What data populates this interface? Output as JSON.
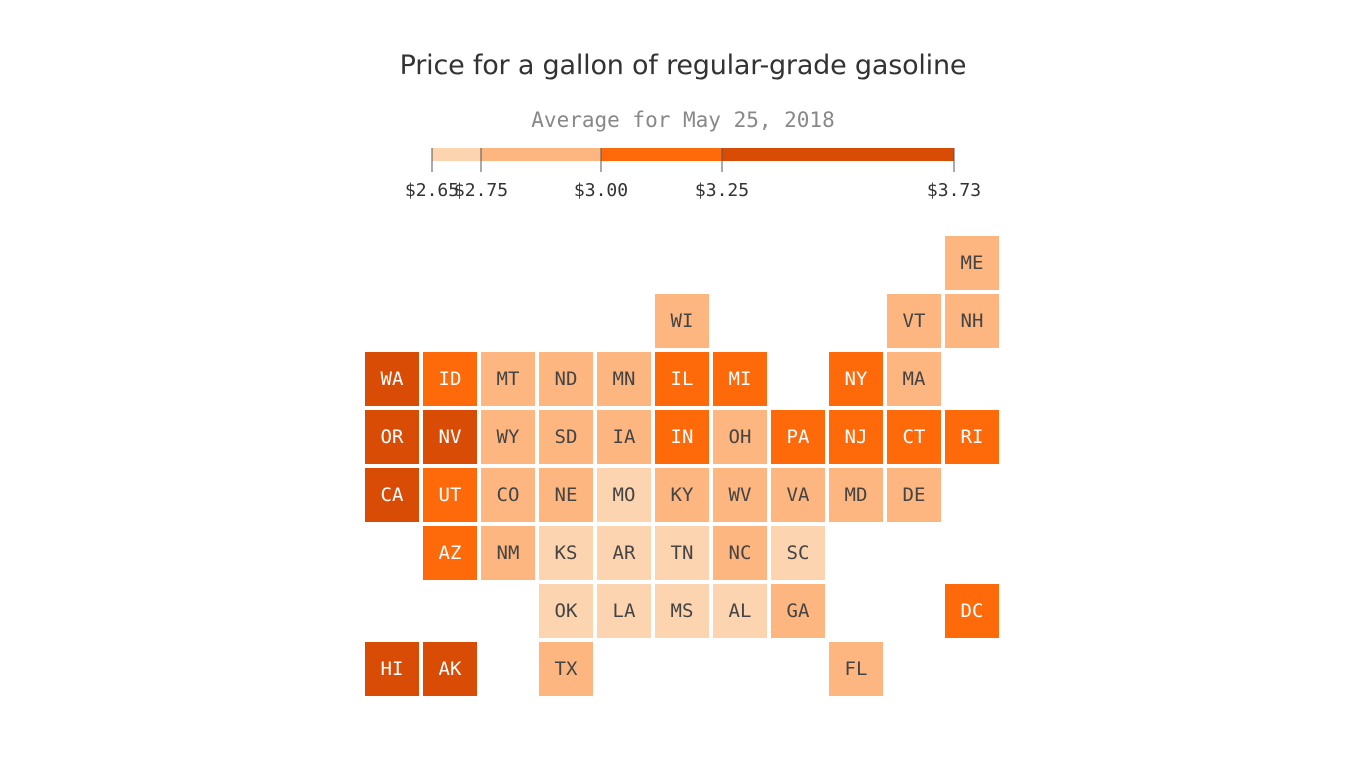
{
  "chart_data": {
    "type": "heatmap",
    "title": "Price for a gallon of regular-grade gasoline",
    "subtitle": "Average for May 25, 2018",
    "legend": {
      "ticks": [
        2.65,
        2.75,
        3.0,
        3.25,
        3.73
      ],
      "tick_labels": [
        "$2.65",
        "$2.75",
        "$3.00",
        "$3.25",
        "$3.73"
      ],
      "bins": [
        {
          "min": 2.65,
          "max": 2.75,
          "color": "#fdd4b0"
        },
        {
          "min": 2.75,
          "max": 3.0,
          "color": "#fdb67f"
        },
        {
          "min": 3.0,
          "max": 3.25,
          "color": "#fe6a0a"
        },
        {
          "min": 3.25,
          "max": 3.73,
          "color": "#d84c05"
        }
      ]
    },
    "states": [
      {
        "code": "ME",
        "row": 0,
        "col": 10,
        "bin": 1
      },
      {
        "code": "WI",
        "row": 1,
        "col": 5,
        "bin": 1
      },
      {
        "code": "VT",
        "row": 1,
        "col": 9,
        "bin": 1
      },
      {
        "code": "NH",
        "row": 1,
        "col": 10,
        "bin": 1
      },
      {
        "code": "WA",
        "row": 2,
        "col": 0,
        "bin": 3
      },
      {
        "code": "ID",
        "row": 2,
        "col": 1,
        "bin": 2
      },
      {
        "code": "MT",
        "row": 2,
        "col": 2,
        "bin": 1
      },
      {
        "code": "ND",
        "row": 2,
        "col": 3,
        "bin": 1
      },
      {
        "code": "MN",
        "row": 2,
        "col": 4,
        "bin": 1
      },
      {
        "code": "IL",
        "row": 2,
        "col": 5,
        "bin": 2
      },
      {
        "code": "MI",
        "row": 2,
        "col": 6,
        "bin": 2
      },
      {
        "code": "NY",
        "row": 2,
        "col": 8,
        "bin": 2
      },
      {
        "code": "MA",
        "row": 2,
        "col": 9,
        "bin": 1
      },
      {
        "code": "OR",
        "row": 3,
        "col": 0,
        "bin": 3
      },
      {
        "code": "NV",
        "row": 3,
        "col": 1,
        "bin": 3
      },
      {
        "code": "WY",
        "row": 3,
        "col": 2,
        "bin": 1
      },
      {
        "code": "SD",
        "row": 3,
        "col": 3,
        "bin": 1
      },
      {
        "code": "IA",
        "row": 3,
        "col": 4,
        "bin": 1
      },
      {
        "code": "IN",
        "row": 3,
        "col": 5,
        "bin": 2
      },
      {
        "code": "OH",
        "row": 3,
        "col": 6,
        "bin": 1
      },
      {
        "code": "PA",
        "row": 3,
        "col": 7,
        "bin": 2
      },
      {
        "code": "NJ",
        "row": 3,
        "col": 8,
        "bin": 2
      },
      {
        "code": "CT",
        "row": 3,
        "col": 9,
        "bin": 2
      },
      {
        "code": "RI",
        "row": 3,
        "col": 10,
        "bin": 2
      },
      {
        "code": "CA",
        "row": 4,
        "col": 0,
        "bin": 3
      },
      {
        "code": "UT",
        "row": 4,
        "col": 1,
        "bin": 2
      },
      {
        "code": "CO",
        "row": 4,
        "col": 2,
        "bin": 1
      },
      {
        "code": "NE",
        "row": 4,
        "col": 3,
        "bin": 1
      },
      {
        "code": "MO",
        "row": 4,
        "col": 4,
        "bin": 0
      },
      {
        "code": "KY",
        "row": 4,
        "col": 5,
        "bin": 1
      },
      {
        "code": "WV",
        "row": 4,
        "col": 6,
        "bin": 1
      },
      {
        "code": "VA",
        "row": 4,
        "col": 7,
        "bin": 1
      },
      {
        "code": "MD",
        "row": 4,
        "col": 8,
        "bin": 1
      },
      {
        "code": "DE",
        "row": 4,
        "col": 9,
        "bin": 1
      },
      {
        "code": "AZ",
        "row": 5,
        "col": 1,
        "bin": 2
      },
      {
        "code": "NM",
        "row": 5,
        "col": 2,
        "bin": 1
      },
      {
        "code": "KS",
        "row": 5,
        "col": 3,
        "bin": 0
      },
      {
        "code": "AR",
        "row": 5,
        "col": 4,
        "bin": 0
      },
      {
        "code": "TN",
        "row": 5,
        "col": 5,
        "bin": 0
      },
      {
        "code": "NC",
        "row": 5,
        "col": 6,
        "bin": 1
      },
      {
        "code": "SC",
        "row": 5,
        "col": 7,
        "bin": 0
      },
      {
        "code": "OK",
        "row": 6,
        "col": 3,
        "bin": 0
      },
      {
        "code": "LA",
        "row": 6,
        "col": 4,
        "bin": 0
      },
      {
        "code": "MS",
        "row": 6,
        "col": 5,
        "bin": 0
      },
      {
        "code": "AL",
        "row": 6,
        "col": 6,
        "bin": 0
      },
      {
        "code": "GA",
        "row": 6,
        "col": 7,
        "bin": 1
      },
      {
        "code": "DC",
        "row": 6,
        "col": 10,
        "bin": 2
      },
      {
        "code": "HI",
        "row": 7,
        "col": 0,
        "bin": 3
      },
      {
        "code": "AK",
        "row": 7,
        "col": 1,
        "bin": 3
      },
      {
        "code": "TX",
        "row": 7,
        "col": 3,
        "bin": 1
      },
      {
        "code": "FL",
        "row": 7,
        "col": 8,
        "bin": 1
      }
    ]
  },
  "colors": {
    "text_dark": "#444444",
    "text_light": "#ffffff"
  }
}
